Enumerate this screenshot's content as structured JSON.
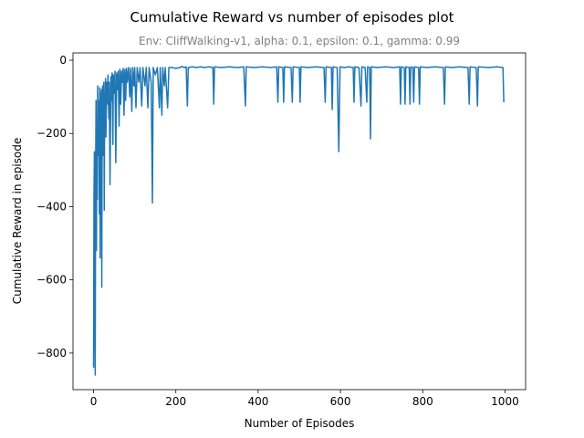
{
  "chart_data": {
    "type": "line",
    "title": "Cumulative Reward vs number of episodes plot",
    "subtitle": "Env: CliffWalking-v1, alpha: 0.1, epsilon: 0.1, gamma: 0.99",
    "xlabel": "Number of Episodes",
    "ylabel": "Cumulative Reward in episode",
    "xlim": [
      -50,
      1050
    ],
    "ylim": [
      -900,
      20
    ],
    "xticks": [
      0,
      200,
      400,
      600,
      800,
      1000
    ],
    "yticks": [
      0,
      -200,
      -400,
      -600,
      -800
    ],
    "xtick_labels": [
      "0",
      "200",
      "400",
      "600",
      "800",
      "1000"
    ],
    "ytick_labels": [
      "0",
      "−200",
      "−400",
      "−600",
      "−800"
    ],
    "grid": false,
    "series": [
      {
        "color": "#1f77b4",
        "points": [
          [
            0,
            -840
          ],
          [
            1,
            -370
          ],
          [
            2,
            -250
          ],
          [
            3,
            -700
          ],
          [
            4,
            -860
          ],
          [
            5,
            -300
          ],
          [
            6,
            -110
          ],
          [
            7,
            -520
          ],
          [
            8,
            -200
          ],
          [
            9,
            -380
          ],
          [
            10,
            -70
          ],
          [
            11,
            -160
          ],
          [
            12,
            -260
          ],
          [
            13,
            -110
          ],
          [
            14,
            -420
          ],
          [
            15,
            -75
          ],
          [
            16,
            -540
          ],
          [
            17,
            -90
          ],
          [
            18,
            -200
          ],
          [
            19,
            -80
          ],
          [
            20,
            -620
          ],
          [
            21,
            -120
          ],
          [
            22,
            -70
          ],
          [
            23,
            -260
          ],
          [
            24,
            -100
          ],
          [
            25,
            -60
          ],
          [
            26,
            -410
          ],
          [
            27,
            -90
          ],
          [
            28,
            -150
          ],
          [
            29,
            -50
          ],
          [
            30,
            -210
          ],
          [
            32,
            -60
          ],
          [
            33,
            -120
          ],
          [
            35,
            -40
          ],
          [
            37,
            -160
          ],
          [
            38,
            -60
          ],
          [
            40,
            -340
          ],
          [
            42,
            -45
          ],
          [
            44,
            -110
          ],
          [
            45,
            -35
          ],
          [
            47,
            -230
          ],
          [
            48,
            -40
          ],
          [
            50,
            -90
          ],
          [
            52,
            -30
          ],
          [
            54,
            -280
          ],
          [
            56,
            -35
          ],
          [
            58,
            -80
          ],
          [
            60,
            -30
          ],
          [
            62,
            -180
          ],
          [
            64,
            -25
          ],
          [
            66,
            -120
          ],
          [
            68,
            -30
          ],
          [
            70,
            -60
          ],
          [
            72,
            -22
          ],
          [
            74,
            -150
          ],
          [
            76,
            -25
          ],
          [
            78,
            -110
          ],
          [
            80,
            -22
          ],
          [
            82,
            -60
          ],
          [
            85,
            -20
          ],
          [
            88,
            -100
          ],
          [
            90,
            -22
          ],
          [
            93,
            -140
          ],
          [
            95,
            -20
          ],
          [
            98,
            -70
          ],
          [
            100,
            -20
          ],
          [
            103,
            -130
          ],
          [
            106,
            -20
          ],
          [
            110,
            -60
          ],
          [
            113,
            -20
          ],
          [
            117,
            -125
          ],
          [
            120,
            -20
          ],
          [
            125,
            -70
          ],
          [
            128,
            -20
          ],
          [
            132,
            -130
          ],
          [
            135,
            -20
          ],
          [
            140,
            -60
          ],
          [
            143,
            -390
          ],
          [
            145,
            -20
          ],
          [
            150,
            -40
          ],
          [
            155,
            -20
          ],
          [
            160,
            -130
          ],
          [
            162,
            -20
          ],
          [
            166,
            -150
          ],
          [
            168,
            -20
          ],
          [
            172,
            -70
          ],
          [
            174,
            -20
          ],
          [
            180,
            -130
          ],
          [
            183,
            -20
          ],
          [
            190,
            -20
          ],
          [
            200,
            -22
          ],
          [
            210,
            -20
          ],
          [
            215,
            -17
          ],
          [
            220,
            -20
          ],
          [
            225,
            -18
          ],
          [
            228,
            -125
          ],
          [
            230,
            -20
          ],
          [
            240,
            -18
          ],
          [
            250,
            -20
          ],
          [
            260,
            -18
          ],
          [
            270,
            -20
          ],
          [
            280,
            -18
          ],
          [
            290,
            -20
          ],
          [
            292,
            -120
          ],
          [
            294,
            -18
          ],
          [
            310,
            -20
          ],
          [
            330,
            -18
          ],
          [
            350,
            -20
          ],
          [
            365,
            -18
          ],
          [
            369,
            -125
          ],
          [
            371,
            -18
          ],
          [
            390,
            -20
          ],
          [
            410,
            -18
          ],
          [
            430,
            -20
          ],
          [
            445,
            -18
          ],
          [
            448,
            -115
          ],
          [
            450,
            -18
          ],
          [
            460,
            -20
          ],
          [
            462,
            -115
          ],
          [
            464,
            -18
          ],
          [
            480,
            -20
          ],
          [
            483,
            -115
          ],
          [
            485,
            -18
          ],
          [
            500,
            -20
          ],
          [
            502,
            -115
          ],
          [
            504,
            -18
          ],
          [
            520,
            -20
          ],
          [
            540,
            -18
          ],
          [
            560,
            -20
          ],
          [
            563,
            -115
          ],
          [
            565,
            -18
          ],
          [
            578,
            -20
          ],
          [
            580,
            -135
          ],
          [
            582,
            -18
          ],
          [
            592,
            -20
          ],
          [
            596,
            -250
          ],
          [
            599,
            -18
          ],
          [
            610,
            -20
          ],
          [
            620,
            -18
          ],
          [
            631,
            -20
          ],
          [
            633,
            -115
          ],
          [
            635,
            -18
          ],
          [
            645,
            -20
          ],
          [
            650,
            -125
          ],
          [
            652,
            -18
          ],
          [
            660,
            -20
          ],
          [
            664,
            -115
          ],
          [
            666,
            -18
          ],
          [
            671,
            -20
          ],
          [
            673,
            -215
          ],
          [
            675,
            -18
          ],
          [
            690,
            -20
          ],
          [
            710,
            -18
          ],
          [
            730,
            -20
          ],
          [
            744,
            -18
          ],
          [
            746,
            -120
          ],
          [
            748,
            -18
          ],
          [
            755,
            -20
          ],
          [
            757,
            -120
          ],
          [
            759,
            -18
          ],
          [
            767,
            -20
          ],
          [
            769,
            -120
          ],
          [
            771,
            -18
          ],
          [
            776,
            -20
          ],
          [
            778,
            -115
          ],
          [
            780,
            -18
          ],
          [
            790,
            -20
          ],
          [
            792,
            -120
          ],
          [
            794,
            -18
          ],
          [
            810,
            -20
          ],
          [
            830,
            -18
          ],
          [
            850,
            -20
          ],
          [
            853,
            -120
          ],
          [
            855,
            -18
          ],
          [
            870,
            -20
          ],
          [
            890,
            -18
          ],
          [
            910,
            -20
          ],
          [
            913,
            -120
          ],
          [
            915,
            -18
          ],
          [
            930,
            -20
          ],
          [
            933,
            -125
          ],
          [
            935,
            -18
          ],
          [
            960,
            -20
          ],
          [
            980,
            -18
          ],
          [
            995,
            -20
          ],
          [
            997,
            -115
          ]
        ]
      }
    ]
  }
}
